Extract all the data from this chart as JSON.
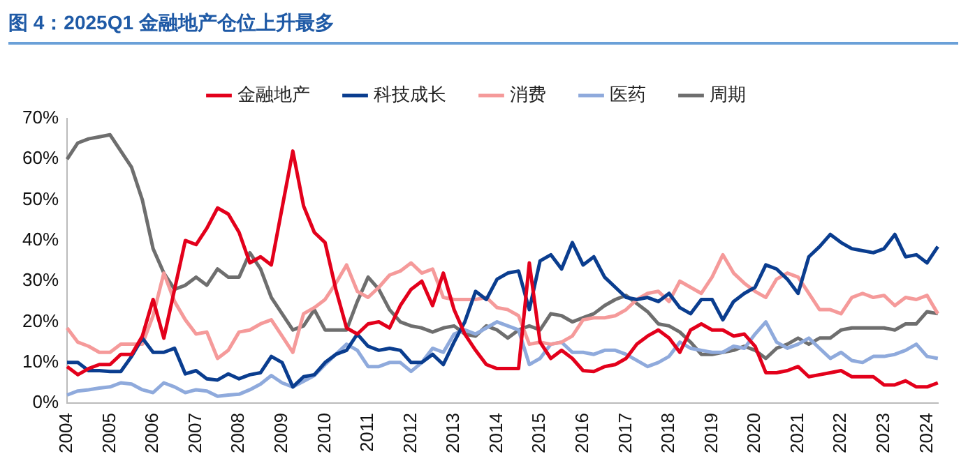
{
  "chart_data": {
    "type": "line",
    "title": "图 4：2025Q1 金融地产仓位上升最多",
    "categories": [
      "2004",
      null,
      null,
      null,
      "2005",
      null,
      null,
      null,
      "2006",
      null,
      null,
      null,
      "2007",
      null,
      null,
      null,
      "2008",
      null,
      null,
      null,
      "2009",
      null,
      null,
      null,
      "2010",
      null,
      null,
      null,
      "2011",
      null,
      null,
      null,
      "2012",
      null,
      null,
      null,
      "2013",
      null,
      null,
      null,
      "2014",
      null,
      null,
      null,
      "2015",
      null,
      null,
      null,
      "2016",
      null,
      null,
      null,
      "2017",
      null,
      null,
      null,
      "2018",
      null,
      null,
      null,
      "2019",
      null,
      null,
      null,
      "2020",
      null,
      null,
      null,
      "2021",
      null,
      null,
      null,
      "2022",
      null,
      null,
      null,
      "2023",
      null,
      null,
      null,
      "2024",
      null
    ],
    "series": [
      {
        "name": "金融地产",
        "color": "#e3001b",
        "values": [
          9,
          7,
          8.5,
          9.5,
          9.5,
          12,
          12,
          16.5,
          25.5,
          16,
          28,
          40,
          39,
          43,
          48,
          46.5,
          42,
          34.5,
          36,
          34,
          48,
          62,
          48.5,
          42,
          39.5,
          28,
          18.5,
          17,
          19.5,
          20,
          18.5,
          24,
          28,
          30,
          24,
          32,
          23,
          17,
          13,
          9.5,
          8.5,
          8.5,
          8.5,
          34.5,
          15,
          11,
          13,
          11,
          8,
          7.8,
          9,
          9.5,
          11,
          14.5,
          16.5,
          18,
          16,
          12.5,
          18,
          19.5,
          18,
          18,
          16.5,
          17,
          14,
          7.5,
          7.5,
          8,
          9,
          6.5,
          7,
          7.5,
          8,
          6.5,
          6.5,
          6.5,
          4.5,
          4.5,
          5.5,
          4,
          4,
          5
        ]
      },
      {
        "name": "科技成长",
        "color": "#0a3d8f",
        "values": [
          10,
          10,
          8,
          8,
          7.8,
          7.8,
          11.5,
          16,
          12.5,
          12.5,
          13.5,
          7.2,
          8,
          6,
          5.7,
          7.2,
          6,
          7,
          7.5,
          11.5,
          10,
          4,
          6.5,
          7,
          10,
          12,
          13,
          17,
          14,
          13,
          13.5,
          13,
          10,
          10,
          12,
          9.5,
          15,
          20,
          27.5,
          25.5,
          30.5,
          32,
          32.5,
          23,
          35,
          36.5,
          33,
          39.5,
          34,
          36,
          31,
          28.5,
          26,
          25.5,
          26,
          25,
          27,
          23.5,
          22,
          25.5,
          25.5,
          20.5,
          25,
          27,
          28.5,
          34,
          33,
          30.5,
          27,
          36,
          38.5,
          41.5,
          39.5,
          38,
          37.5,
          37,
          38,
          41.5,
          36,
          36.5,
          34.5,
          38.5
        ]
      },
      {
        "name": "消费",
        "color": "#f59a9a",
        "values": [
          18.5,
          15,
          14,
          12.5,
          12.5,
          14.5,
          14.5,
          14.5,
          21.5,
          32,
          25,
          20.5,
          17,
          17.5,
          11,
          13,
          17.5,
          18,
          19.5,
          20.5,
          16.5,
          12.5,
          22,
          23.5,
          25.5,
          29.5,
          34,
          27.5,
          26,
          28.5,
          31.5,
          32.5,
          34.5,
          32,
          33,
          26,
          25.5,
          25.5,
          25.5,
          26,
          23.5,
          23,
          21.5,
          14.5,
          15,
          14.5,
          15,
          16.5,
          20.5,
          21,
          21,
          21.5,
          23,
          25.5,
          27,
          27.5,
          25,
          30,
          28.5,
          27,
          31,
          36.5,
          32,
          29.5,
          27.5,
          26,
          30.5,
          32,
          31,
          27,
          23,
          23,
          22,
          26,
          27,
          26,
          26.5,
          24,
          26,
          25.5,
          26.5,
          22
        ]
      },
      {
        "name": "医药",
        "color": "#8faadc",
        "values": [
          2,
          3,
          3.3,
          3.7,
          4,
          5,
          4.7,
          3.3,
          2.6,
          5,
          4,
          2.6,
          3.3,
          3,
          1.7,
          2,
          2.2,
          3.3,
          4.7,
          6.8,
          5,
          4,
          5.4,
          6.8,
          9.5,
          12,
          14.5,
          13,
          9,
          9,
          10,
          10,
          7.8,
          10,
          13.5,
          12.5,
          17,
          18,
          17,
          18.5,
          20,
          19,
          18,
          9.5,
          11,
          14.5,
          15,
          12.5,
          12.5,
          12,
          13,
          13,
          12,
          10.5,
          9,
          10,
          11.5,
          15,
          13.5,
          13,
          12.5,
          12.5,
          14,
          13.5,
          17,
          20,
          15,
          13.5,
          14.5,
          16,
          13.5,
          11,
          12.5,
          10.5,
          10,
          11.5,
          11.5,
          12,
          13,
          14.5,
          11.5,
          11
        ]
      },
      {
        "name": "周期",
        "color": "#6e6e6e",
        "values": [
          60,
          64,
          65,
          65.5,
          66,
          62,
          58,
          50,
          38,
          32,
          28,
          29,
          31,
          29,
          33,
          31,
          31,
          37,
          33,
          26,
          22,
          18,
          19,
          23,
          18,
          18,
          18,
          25,
          31,
          28,
          23,
          20,
          19,
          18.5,
          17.5,
          18.5,
          19,
          17,
          16.5,
          19,
          18,
          16,
          18,
          19,
          18,
          22,
          21.5,
          20,
          21,
          22,
          24,
          25.5,
          26.5,
          24.5,
          22.5,
          19.5,
          19,
          17.5,
          15,
          12,
          12,
          12.5,
          13,
          14,
          13,
          11,
          13.5,
          14.5,
          16,
          14.5,
          16,
          16,
          18,
          18.5,
          18.5,
          18.5,
          18.5,
          18,
          19.5,
          19.5,
          22.5,
          22
        ]
      }
    ],
    "ylim": [
      0,
      70
    ],
    "yticks": [
      {
        "value": 0,
        "label": "0%"
      },
      {
        "value": 10,
        "label": "10%"
      },
      {
        "value": 20,
        "label": "20%"
      },
      {
        "value": 30,
        "label": "30%"
      },
      {
        "value": 40,
        "label": "40%"
      },
      {
        "value": 50,
        "label": "50%"
      },
      {
        "value": 60,
        "label": "60%"
      },
      {
        "value": 70,
        "label": "70%"
      }
    ],
    "legend": "top",
    "grid": false,
    "marker": "none",
    "line_style": "solid"
  }
}
